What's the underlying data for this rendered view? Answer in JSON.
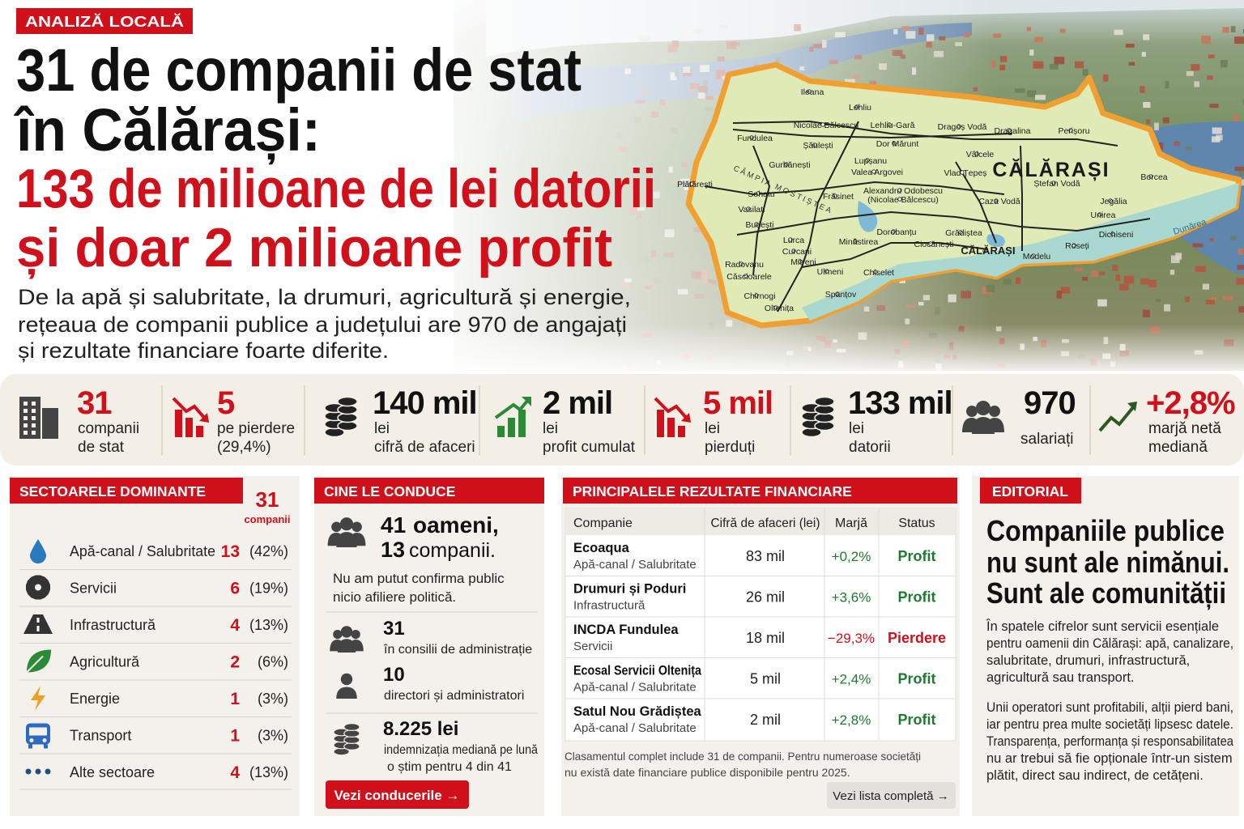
{
  "header": {
    "tag": "ANALIZĂ LOCALĂ",
    "title_lines": [
      "31 de companii de stat",
      "în Călărași:"
    ],
    "highlight_lines": [
      "133 de milioane de lei datorii",
      "și doar 2 milioane profit"
    ],
    "subtitle_lines": [
      "De la apă și salubritate, la drumuri, agricultură și energie,",
      "rețeaua de companii publice a județului are 970 de angajați",
      "și rezultate financiare foarte diferite."
    ]
  },
  "map": {
    "county": "CĂLĂRAȘI",
    "region": "CÂMPIA MOSTIȘTEA",
    "river": "Dunărea",
    "places": [
      "Ileana",
      "Lehliu",
      "Nicolae Bălcescu",
      "Lehliu-Gară",
      "Dragoș Vodă",
      "Dragalina",
      "Perișoru",
      "Fundulea",
      "Șăulești",
      "Dor Mărunt",
      "Vâlcele",
      "Gurbănești",
      "Lupșanu",
      "Vlad Țepeș",
      "Valea Argovei",
      "Ștefan Vodă",
      "Borcea",
      "Plătărești",
      "Sohatu",
      "Frăsinet",
      "Alexandru Odobescu",
      "(Nicolae Bălcescu)",
      "Caza Vodă",
      "Jegălia",
      "Vasilati",
      "Unirea",
      "Budești",
      "Dichiseni",
      "Dorobanțu",
      "Grădiștea",
      "Lurca",
      "Curcani",
      "Minăstirea",
      "Ciocănești",
      "CĂLĂRAȘI",
      "Modelu",
      "Roseți",
      "Mitreni",
      "Radovanu",
      "Căscioarele",
      "Ulmeni",
      "Chiselet",
      "Chirnogi",
      "Spanțov",
      "Oltenița"
    ]
  },
  "stats": [
    {
      "value": "31",
      "label_lines": [
        "companii",
        "de stat"
      ],
      "color": "#d0101a"
    },
    {
      "value": "5",
      "label_lines": [
        "pe pierdere",
        "(29,4%)"
      ],
      "color": "#d0101a"
    },
    {
      "value": "140 mil",
      "label_lines": [
        "lei",
        "cifră de afaceri"
      ],
      "color": "#111111"
    },
    {
      "value": "2 mil",
      "label_lines": [
        "lei",
        "profit cumulat"
      ],
      "color": "#111111"
    },
    {
      "value": "5 mil",
      "label_lines": [
        "lei",
        "pierduți"
      ],
      "color": "#d0101a"
    },
    {
      "value": "133 mil",
      "label_lines": [
        "lei",
        "datorii"
      ],
      "color": "#111111"
    },
    {
      "value": "970",
      "label_lines": [
        "salariați"
      ],
      "color": "#111111"
    },
    {
      "value": "+2,8%",
      "label_lines": [
        "marjă netă",
        "mediană"
      ],
      "color": "#d0101a"
    }
  ],
  "sectors": {
    "title": "SECTOARELE DOMINANTE",
    "total": "31",
    "total_label": "companii",
    "rows": [
      {
        "name": "Apă-canal / Salubritate",
        "count": "13",
        "share": "(42%)"
      },
      {
        "name": "Servicii",
        "count": "6",
        "share": "(19%)"
      },
      {
        "name": "Infrastructură",
        "count": "4",
        "share": "(13%)"
      },
      {
        "name": "Agricultură",
        "count": "2",
        "share": "(6%)"
      },
      {
        "name": "Energie",
        "count": "1",
        "share": "(3%)"
      },
      {
        "name": "Transport",
        "count": "1",
        "share": "(3%)"
      },
      {
        "name": "Alte sectoare",
        "count": "4",
        "share": "(13%)"
      }
    ]
  },
  "leadership": {
    "title": "CINE LE CONDUCE",
    "people": "41",
    "people_label": "oameni,",
    "companies": "13",
    "companies_label": "companii.",
    "note_lines": [
      "Nu am putut confirma public",
      "nicio afiliere politică."
    ],
    "items": [
      {
        "value": "31",
        "label_lines": [
          "în consilii de administrație"
        ]
      },
      {
        "value": "10",
        "label_lines": [
          "directori și administratori"
        ]
      },
      {
        "value": "8.225 lei",
        "label_lines": [
          "indemnizația mediană pe lună",
          "o știm pentru 4 din 41"
        ]
      }
    ],
    "button": "Vezi conducerile →"
  },
  "results": {
    "title": "PRINCIPALELE REZULTATE FINANCIARE",
    "columns": [
      "Companie",
      "Cifră de afaceri (lei)",
      "Marjă",
      "Status"
    ],
    "rows": [
      {
        "company": "Ecoaqua",
        "sector": "Apă-canal / Salubritate",
        "turnover": "83 mil",
        "margin": "+0,2%",
        "status": "Profit",
        "color": "#1e7a2e"
      },
      {
        "company": "Drumuri și Poduri",
        "sector": "Infrastructură",
        "turnover": "26 mil",
        "margin": "+3,6%",
        "status": "Profit",
        "color": "#1e7a2e"
      },
      {
        "company": "INCDA Fundulea",
        "sector": "Servicii",
        "turnover": "18 mil",
        "margin": "−29,3%",
        "status": "Pierdere",
        "color": "#d0101a"
      },
      {
        "company": "Ecosal Servicii Oltenița",
        "sector": "Apă-canal / Salubritate",
        "turnover": "5 mil",
        "margin": "+2,4%",
        "status": "Profit",
        "color": "#1e7a2e"
      },
      {
        "company": "Satul Nou Grădiștea",
        "sector": "Apă-canal / Salubritate",
        "turnover": "2 mil",
        "margin": "+2,8%",
        "status": "Profit",
        "color": "#1e7a2e"
      }
    ],
    "note_lines": [
      "Clasamentul complet include 31 de companii. Pentru numeroase societăți",
      "nu există date financiare publice disponibile pentru 2025."
    ],
    "button": "Vezi lista completă →"
  },
  "editorial": {
    "title": "EDITORIAL",
    "headline_lines": [
      "Companiile publice",
      "nu sunt ale nimănui.",
      "Sunt ale comunității"
    ],
    "paragraphs": [
      [
        "În spatele cifrelor sunt servicii esențiale",
        "pentru oamenii din Călărași: apă, canalizare,",
        "salubritate, drumuri, infrastructură,",
        "agricultură sau transport."
      ],
      [
        "Unii operatori sunt profitabili, alții pierd bani,",
        "iar pentru prea multe societăți lipsesc datele.",
        "Transparența, performanța și responsabilitatea",
        "nu ar trebui să fie opționale într-un sistem",
        "plătit, direct sau indirect, de cetățeni."
      ]
    ]
  }
}
